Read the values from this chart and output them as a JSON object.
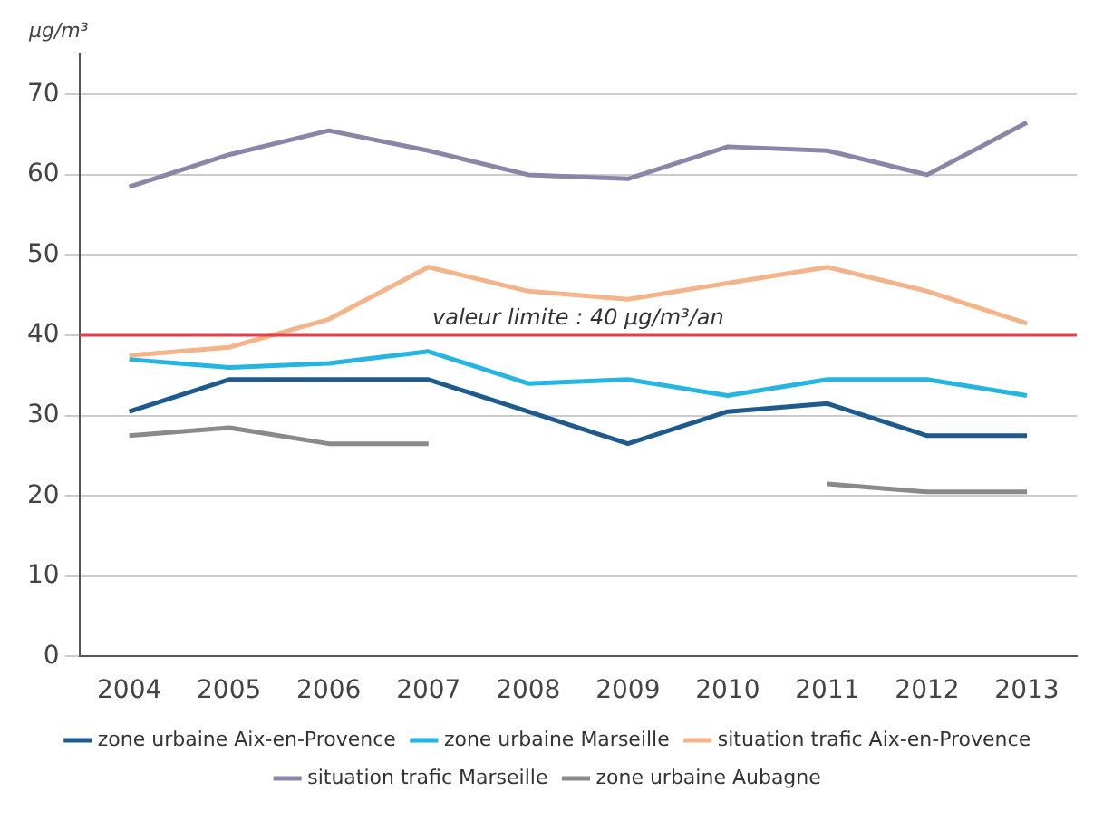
{
  "chart_data": {
    "type": "line",
    "ylabel": "µg/m³",
    "categories": [
      "2004",
      "2005",
      "2006",
      "2007",
      "2008",
      "2009",
      "2010",
      "2011",
      "2012",
      "2013"
    ],
    "series": [
      {
        "name": "zone urbaine Aix-en-Provence",
        "color": "#1f5a8c",
        "values": [
          30.5,
          34.5,
          34.5,
          34.5,
          30.5,
          26.5,
          30.5,
          31.5,
          27.5,
          27.5
        ]
      },
      {
        "name": "zone urbaine Marseille",
        "color": "#26b5e0",
        "values": [
          37,
          36,
          36.5,
          38,
          34,
          34.5,
          32.5,
          34.5,
          34.5,
          32.5
        ]
      },
      {
        "name": "situation trafic Aix-en-Provence",
        "color": "#f4b48a",
        "values": [
          37.5,
          38.5,
          42,
          48.5,
          45.5,
          44.5,
          46.5,
          48.5,
          45.5,
          41.5
        ]
      },
      {
        "name": "situation trafic Marseille",
        "color": "#8a86a8",
        "values": [
          58.5,
          62.5,
          65.5,
          63,
          60,
          59.5,
          63.5,
          63,
          60,
          66.5
        ]
      },
      {
        "name": "zone urbaine Aubagne",
        "color": "#8a8a8a",
        "values": [
          27.5,
          28.5,
          26.5,
          26.5,
          null,
          null,
          null,
          21.5,
          20.5,
          20.5
        ]
      }
    ],
    "ylim": [
      0,
      75
    ],
    "yticks": [
      0,
      10,
      20,
      30,
      40,
      50,
      60,
      70
    ],
    "grid": "y",
    "legend": "bottom",
    "marker": "none",
    "line_style": "solid",
    "ref_lines": [
      {
        "axis": "y",
        "value": 40,
        "label": "valeur limite : 40 µg/m³/an",
        "color": "#e8404a"
      }
    ]
  }
}
